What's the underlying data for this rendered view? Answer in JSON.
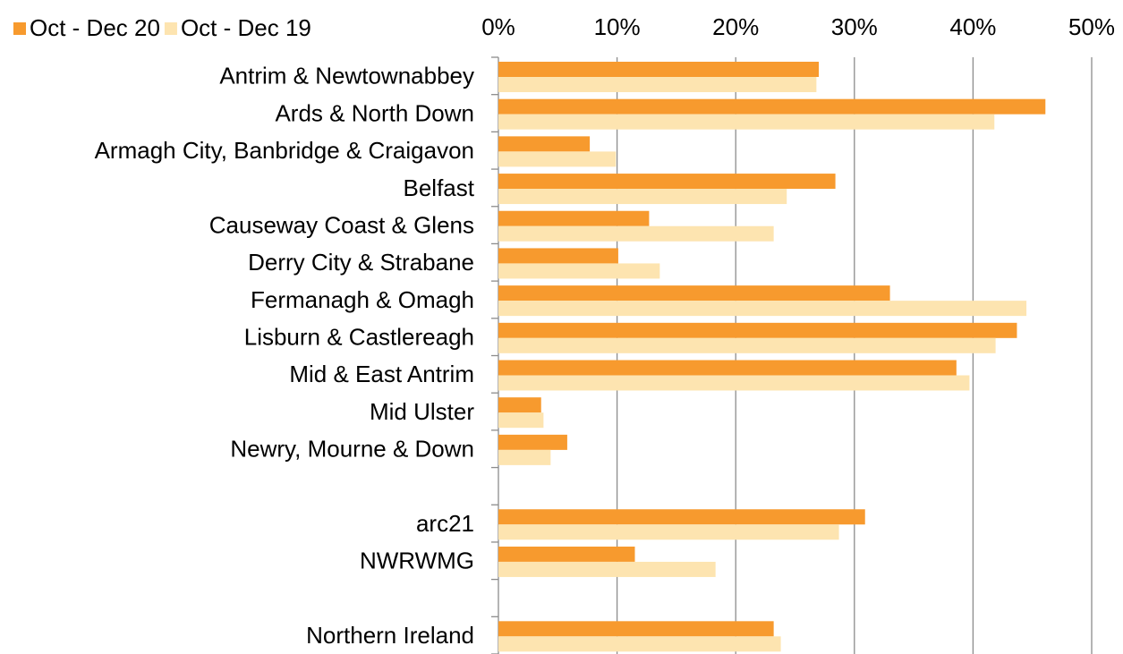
{
  "chart_data": {
    "type": "bar",
    "orientation": "horizontal",
    "categories": [
      "Antrim & Newtownabbey",
      "Ards & North Down",
      "Armagh City, Banbridge & Craigavon",
      "Belfast",
      "Causeway Coast & Glens",
      "Derry City & Strabane",
      "Fermanagh & Omagh",
      "Lisburn & Castlereagh",
      "Mid & East Antrim",
      "Mid Ulster",
      "Newry, Mourne & Down",
      null,
      "arc21",
      "NWRWMG",
      null,
      "Northern Ireland"
    ],
    "series": [
      {
        "name": "Oct - Dec 20",
        "color": "#f79a2e",
        "values": [
          27.0,
          46.1,
          7.7,
          28.4,
          12.7,
          10.1,
          33.0,
          43.7,
          38.6,
          3.6,
          5.8,
          null,
          30.9,
          11.5,
          null,
          23.2
        ]
      },
      {
        "name": "Oct - Dec 19",
        "color": "#fde4b0",
        "values": [
          26.8,
          41.8,
          9.9,
          24.3,
          23.2,
          13.6,
          44.5,
          41.9,
          39.7,
          3.8,
          4.4,
          null,
          28.7,
          18.3,
          null,
          23.8
        ]
      }
    ],
    "xlim": [
      0,
      50
    ],
    "xticks": [
      {
        "value": 0,
        "label": "0%"
      },
      {
        "value": 10,
        "label": "10%"
      },
      {
        "value": 20,
        "label": "20%"
      },
      {
        "value": 30,
        "label": "30%"
      },
      {
        "value": 40,
        "label": "40%"
      },
      {
        "value": 50,
        "label": "50%"
      }
    ],
    "grid": true,
    "legend": "top-left"
  }
}
